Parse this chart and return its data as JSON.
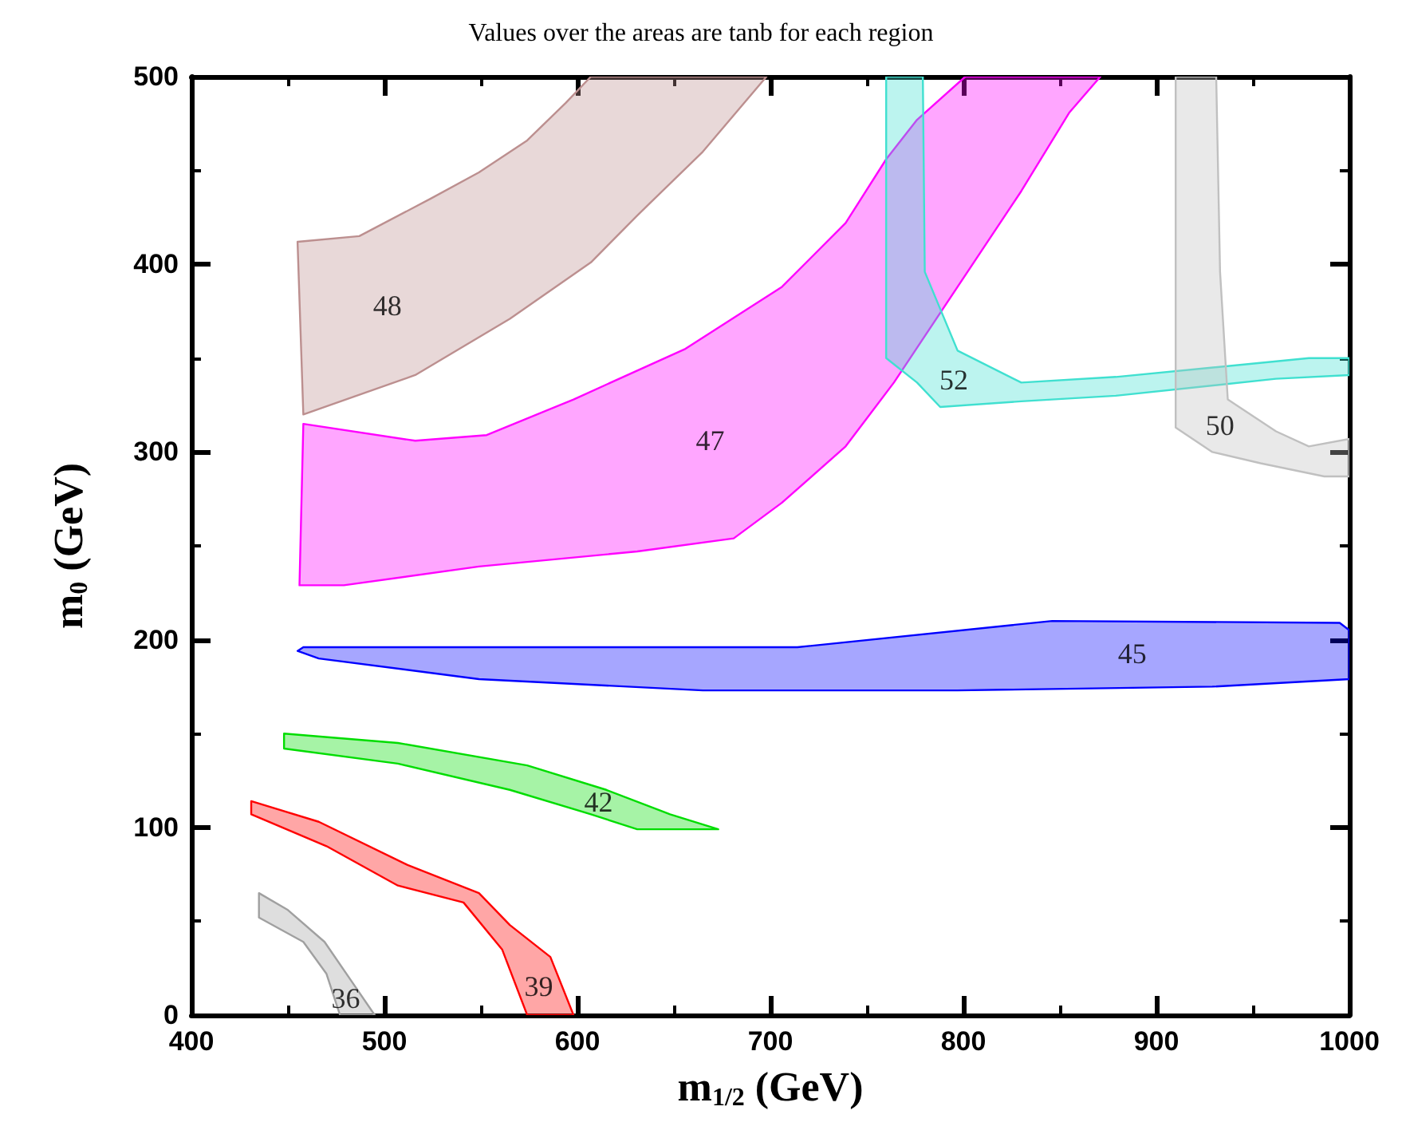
{
  "chart_data": {
    "type": "area",
    "title": "Values over the areas are tanb for each region",
    "xlabel": "m$_{1/2}$ (GeV)",
    "ylabel": "m$_{0}$ (GeV)",
    "xlim": [
      400,
      1000
    ],
    "xticks": [
      400,
      500,
      600,
      700,
      800,
      900,
      1000
    ],
    "ylim": [
      0,
      500
    ],
    "yticks": [
      0,
      100,
      200,
      300,
      400,
      500
    ],
    "grid": false,
    "series": [
      {
        "name": "36",
        "color": "#a0a0a0",
        "x": [
          435,
          450,
          469,
          483,
          495,
          477,
          470,
          458,
          435
        ],
        "values": [
          65,
          56,
          39,
          18,
          0,
          0,
          22,
          39,
          52
        ]
      },
      {
        "name": "39",
        "color": "#ff0000",
        "x": [
          431,
          466,
          512,
          549,
          565,
          586,
          598,
          574,
          561,
          541,
          507,
          470,
          431
        ],
        "values": [
          114,
          103,
          80,
          65,
          48,
          31,
          0,
          0,
          35,
          60,
          69,
          90,
          107
        ]
      },
      {
        "name": "42",
        "color": "#00dd00",
        "x": [
          448,
          507,
          574,
          615,
          648,
          673,
          631,
          607,
          565,
          507,
          448
        ],
        "values": [
          150,
          145,
          133,
          120,
          107,
          99,
          99,
          107,
          120,
          134,
          142
        ]
      },
      {
        "name": "45",
        "color": "#0000ff",
        "x": [
          455,
          458,
          590,
          714,
          846,
          995,
          1000,
          1000,
          929,
          797,
          665,
          549,
          466
        ],
        "values": [
          194,
          196,
          196,
          196,
          210,
          209,
          205,
          179,
          175,
          173,
          173,
          179,
          190
        ]
      },
      {
        "name": "47",
        "color": "#ff00ff",
        "x": [
          458,
          516,
          553,
          598,
          656,
          706,
          739,
          760,
          776,
          801,
          871,
          855,
          830,
          797,
          764,
          739,
          706,
          681,
          631,
          549,
          479,
          456
        ],
        "values": [
          315,
          306,
          309,
          328,
          355,
          388,
          422,
          456,
          477,
          500,
          500,
          481,
          439,
          388,
          337,
          303,
          273,
          254,
          247,
          239,
          229,
          229
        ]
      },
      {
        "name": "48",
        "color": "#bc8f8f",
        "x": [
          455,
          487,
          524,
          549,
          574,
          594,
          607,
          698,
          665,
          631,
          607,
          565,
          516,
          458
        ],
        "values": [
          412,
          415,
          435,
          449,
          466,
          486,
          500,
          500,
          460,
          426,
          401,
          371,
          341,
          320
        ]
      },
      {
        "name": "52",
        "color": "#40e0d0",
        "x": [
          760,
          779,
          780,
          797,
          830,
          879,
          979,
          1000,
          1000,
          962,
          879,
          830,
          788,
          776,
          760
        ],
        "values": [
          500,
          500,
          396,
          354,
          337,
          340,
          350,
          350,
          341,
          339,
          330,
          327,
          324,
          337,
          350
        ]
      },
      {
        "name": "50",
        "color": "#c0c0c0",
        "x": [
          910,
          931,
          933,
          937,
          962,
          979,
          1000,
          1000,
          987,
          954,
          929,
          910,
          910
        ],
        "values": [
          500,
          500,
          396,
          328,
          311,
          303,
          307,
          287,
          287,
          294,
          300,
          313,
          396
        ]
      }
    ]
  }
}
